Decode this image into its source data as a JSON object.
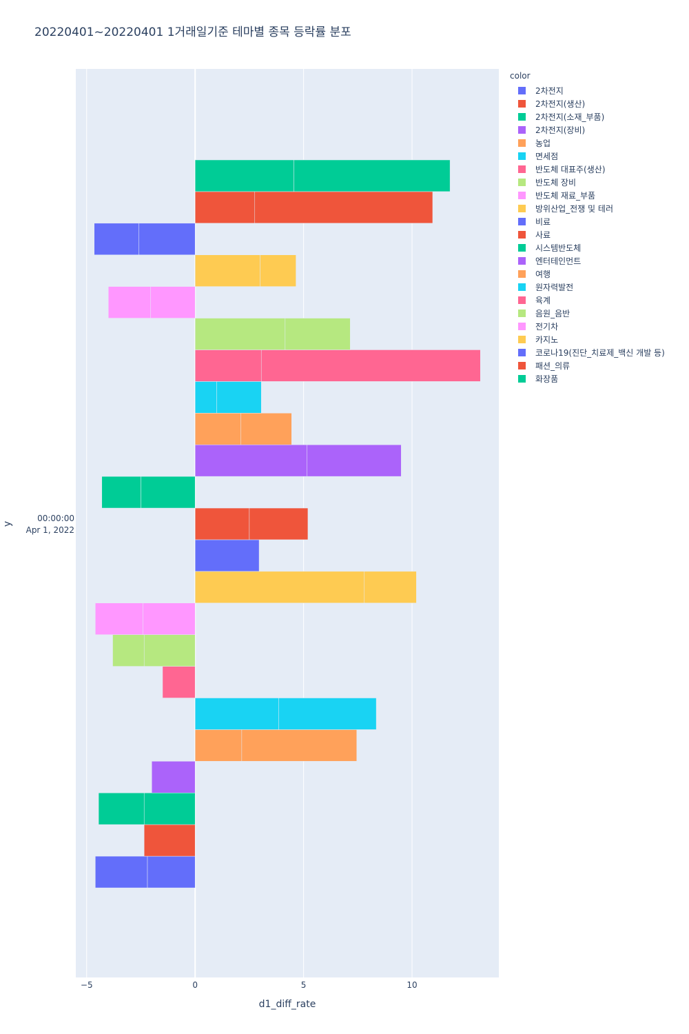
{
  "title": "20220401~20220401 1거래일기준 테마별 종목 등락률 분포",
  "chart_data": {
    "type": "bar",
    "orientation": "horizontal",
    "title": "20220401~20220401 1거래일기준 테마별 종목 등락률 분포",
    "xlabel": "d1_diff_rate",
    "ylabel": "y",
    "y_category_label": [
      "00:00:00",
      "Apr 1, 2022"
    ],
    "xlim": [
      -5.5,
      14.0
    ],
    "x_ticks": [
      -5,
      0,
      5,
      10
    ],
    "x_tick_labels": [
      "−5",
      "0",
      "5",
      "10"
    ],
    "grid": true,
    "legend_title": "color",
    "legend_position": "right",
    "series": [
      {
        "name": "2차전지",
        "color": "#636efa",
        "segments": [
          -2.2,
          -2.4
        ]
      },
      {
        "name": "2차전지(생산)",
        "color": "#EF553B",
        "segments": [
          -2.35
        ]
      },
      {
        "name": "2차전지(소재_부품)",
        "color": "#00cc96",
        "segments": [
          -2.35,
          -2.1
        ]
      },
      {
        "name": "2차전지(장비)",
        "color": "#ab63fa",
        "segments": [
          -2.0
        ]
      },
      {
        "name": "농업",
        "color": "#FFA15A",
        "segments": [
          2.15,
          5.3
        ]
      },
      {
        "name": "면세점",
        "color": "#19d3f3",
        "segments": [
          3.85,
          4.5
        ]
      },
      {
        "name": "반도체 대표주(생산)",
        "color": "#FF6692",
        "segments": [
          -1.5
        ]
      },
      {
        "name": "반도체 장비",
        "color": "#B6E880",
        "segments": [
          -2.35,
          -1.45
        ]
      },
      {
        "name": "반도체 재료_부품",
        "color": "#FF97FF",
        "segments": [
          -2.4,
          -2.2
        ]
      },
      {
        "name": "방위산업_전쟁 및 테러",
        "color": "#FECB52",
        "segments": [
          7.8,
          2.4
        ]
      },
      {
        "name": "비료",
        "color": "#636efa",
        "segments": [
          2.95
        ]
      },
      {
        "name": "사료",
        "color": "#EF553B",
        "segments": [
          2.5,
          2.7
        ]
      },
      {
        "name": "시스템반도체",
        "color": "#00cc96",
        "segments": [
          -2.5,
          -1.8
        ]
      },
      {
        "name": "엔터테인먼트",
        "color": "#ab63fa",
        "segments": [
          5.15,
          4.35
        ]
      },
      {
        "name": "여행",
        "color": "#FFA15A",
        "segments": [
          2.1,
          2.35
        ]
      },
      {
        "name": "원자력발전",
        "color": "#19d3f3",
        "segments": [
          1.0,
          2.05
        ]
      },
      {
        "name": "육계",
        "color": "#FF6692",
        "segments": [
          3.05,
          10.1
        ]
      },
      {
        "name": "음원_음반",
        "color": "#B6E880",
        "segments": [
          4.15,
          3.0
        ]
      },
      {
        "name": "전기차",
        "color": "#FF97FF",
        "segments": [
          -2.05,
          -1.95
        ]
      },
      {
        "name": "카지노",
        "color": "#FECB52",
        "segments": [
          3.0,
          1.65
        ]
      },
      {
        "name": "코로나19(진단_치료제_백신 개발 등)",
        "color": "#636efa",
        "segments": [
          -2.6,
          -2.05
        ]
      },
      {
        "name": "패션_의류",
        "color": "#EF553B",
        "segments": [
          2.75,
          8.2
        ]
      },
      {
        "name": "화장품",
        "color": "#00cc96",
        "segments": [
          4.55,
          7.2
        ]
      }
    ]
  }
}
